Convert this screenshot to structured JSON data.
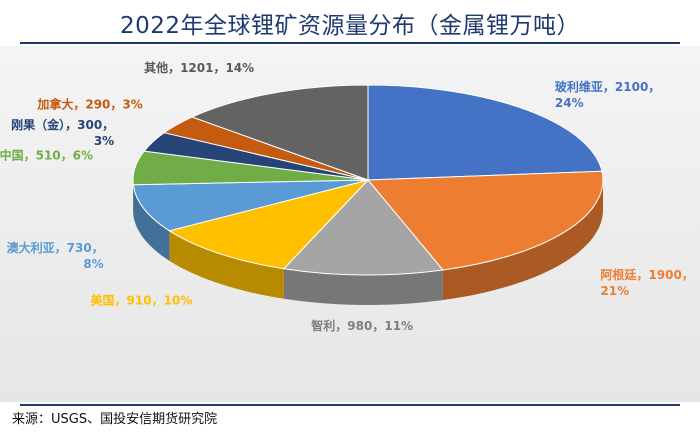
{
  "title": "2022年全球锂矿资源量分布（金属锂万吨）",
  "source": "来源：USGS、国投安信期货研究院",
  "chart_data": {
    "type": "pie",
    "title": "2022年全球锂矿资源量分布（金属锂万吨）",
    "slices": [
      {
        "name": "玻利维亚",
        "value": 2100,
        "percent": "24%",
        "color": "#4472c4",
        "label_color": "#4472c4",
        "line1": "玻利维亚，2100，",
        "line2": "24%"
      },
      {
        "name": "阿根廷",
        "value": 1900,
        "percent": "21%",
        "color": "#ed7d31",
        "label_color": "#ed7d31",
        "line1": "阿根廷，1900，",
        "line2": "21%"
      },
      {
        "name": "智利",
        "value": 980,
        "percent": "11%",
        "color": "#a5a5a5",
        "label_color": "#7f7f7f",
        "line1": "智利，980，11%",
        "line2": ""
      },
      {
        "name": "美国",
        "value": 910,
        "percent": "10%",
        "color": "#ffc000",
        "label_color": "#ffc000",
        "line1": "美国，910，10%",
        "line2": ""
      },
      {
        "name": "澳大利亚",
        "value": 730,
        "percent": "8%",
        "color": "#5b9bd5",
        "label_color": "#5b9bd5",
        "line1": "澳大利亚，730，",
        "line2": "8%"
      },
      {
        "name": "中国",
        "value": 510,
        "percent": "6%",
        "color": "#70ad47",
        "label_color": "#70ad47",
        "line1": "中国，510，6%",
        "line2": ""
      },
      {
        "name": "刚果（金）",
        "value": 300,
        "percent": "3%",
        "color": "#264478",
        "label_color": "#264478",
        "line1": "刚果（金），300，",
        "line2": "3%"
      },
      {
        "name": "加拿大",
        "value": 290,
        "percent": "3%",
        "color": "#c55a11",
        "label_color": "#c55a11",
        "line1": "加拿大，290，3%",
        "line2": ""
      },
      {
        "name": "其他",
        "value": 1201,
        "percent": "14%",
        "color": "#636363",
        "label_color": "#595959",
        "line1": "其他，1201，14%",
        "line2": ""
      }
    ]
  }
}
